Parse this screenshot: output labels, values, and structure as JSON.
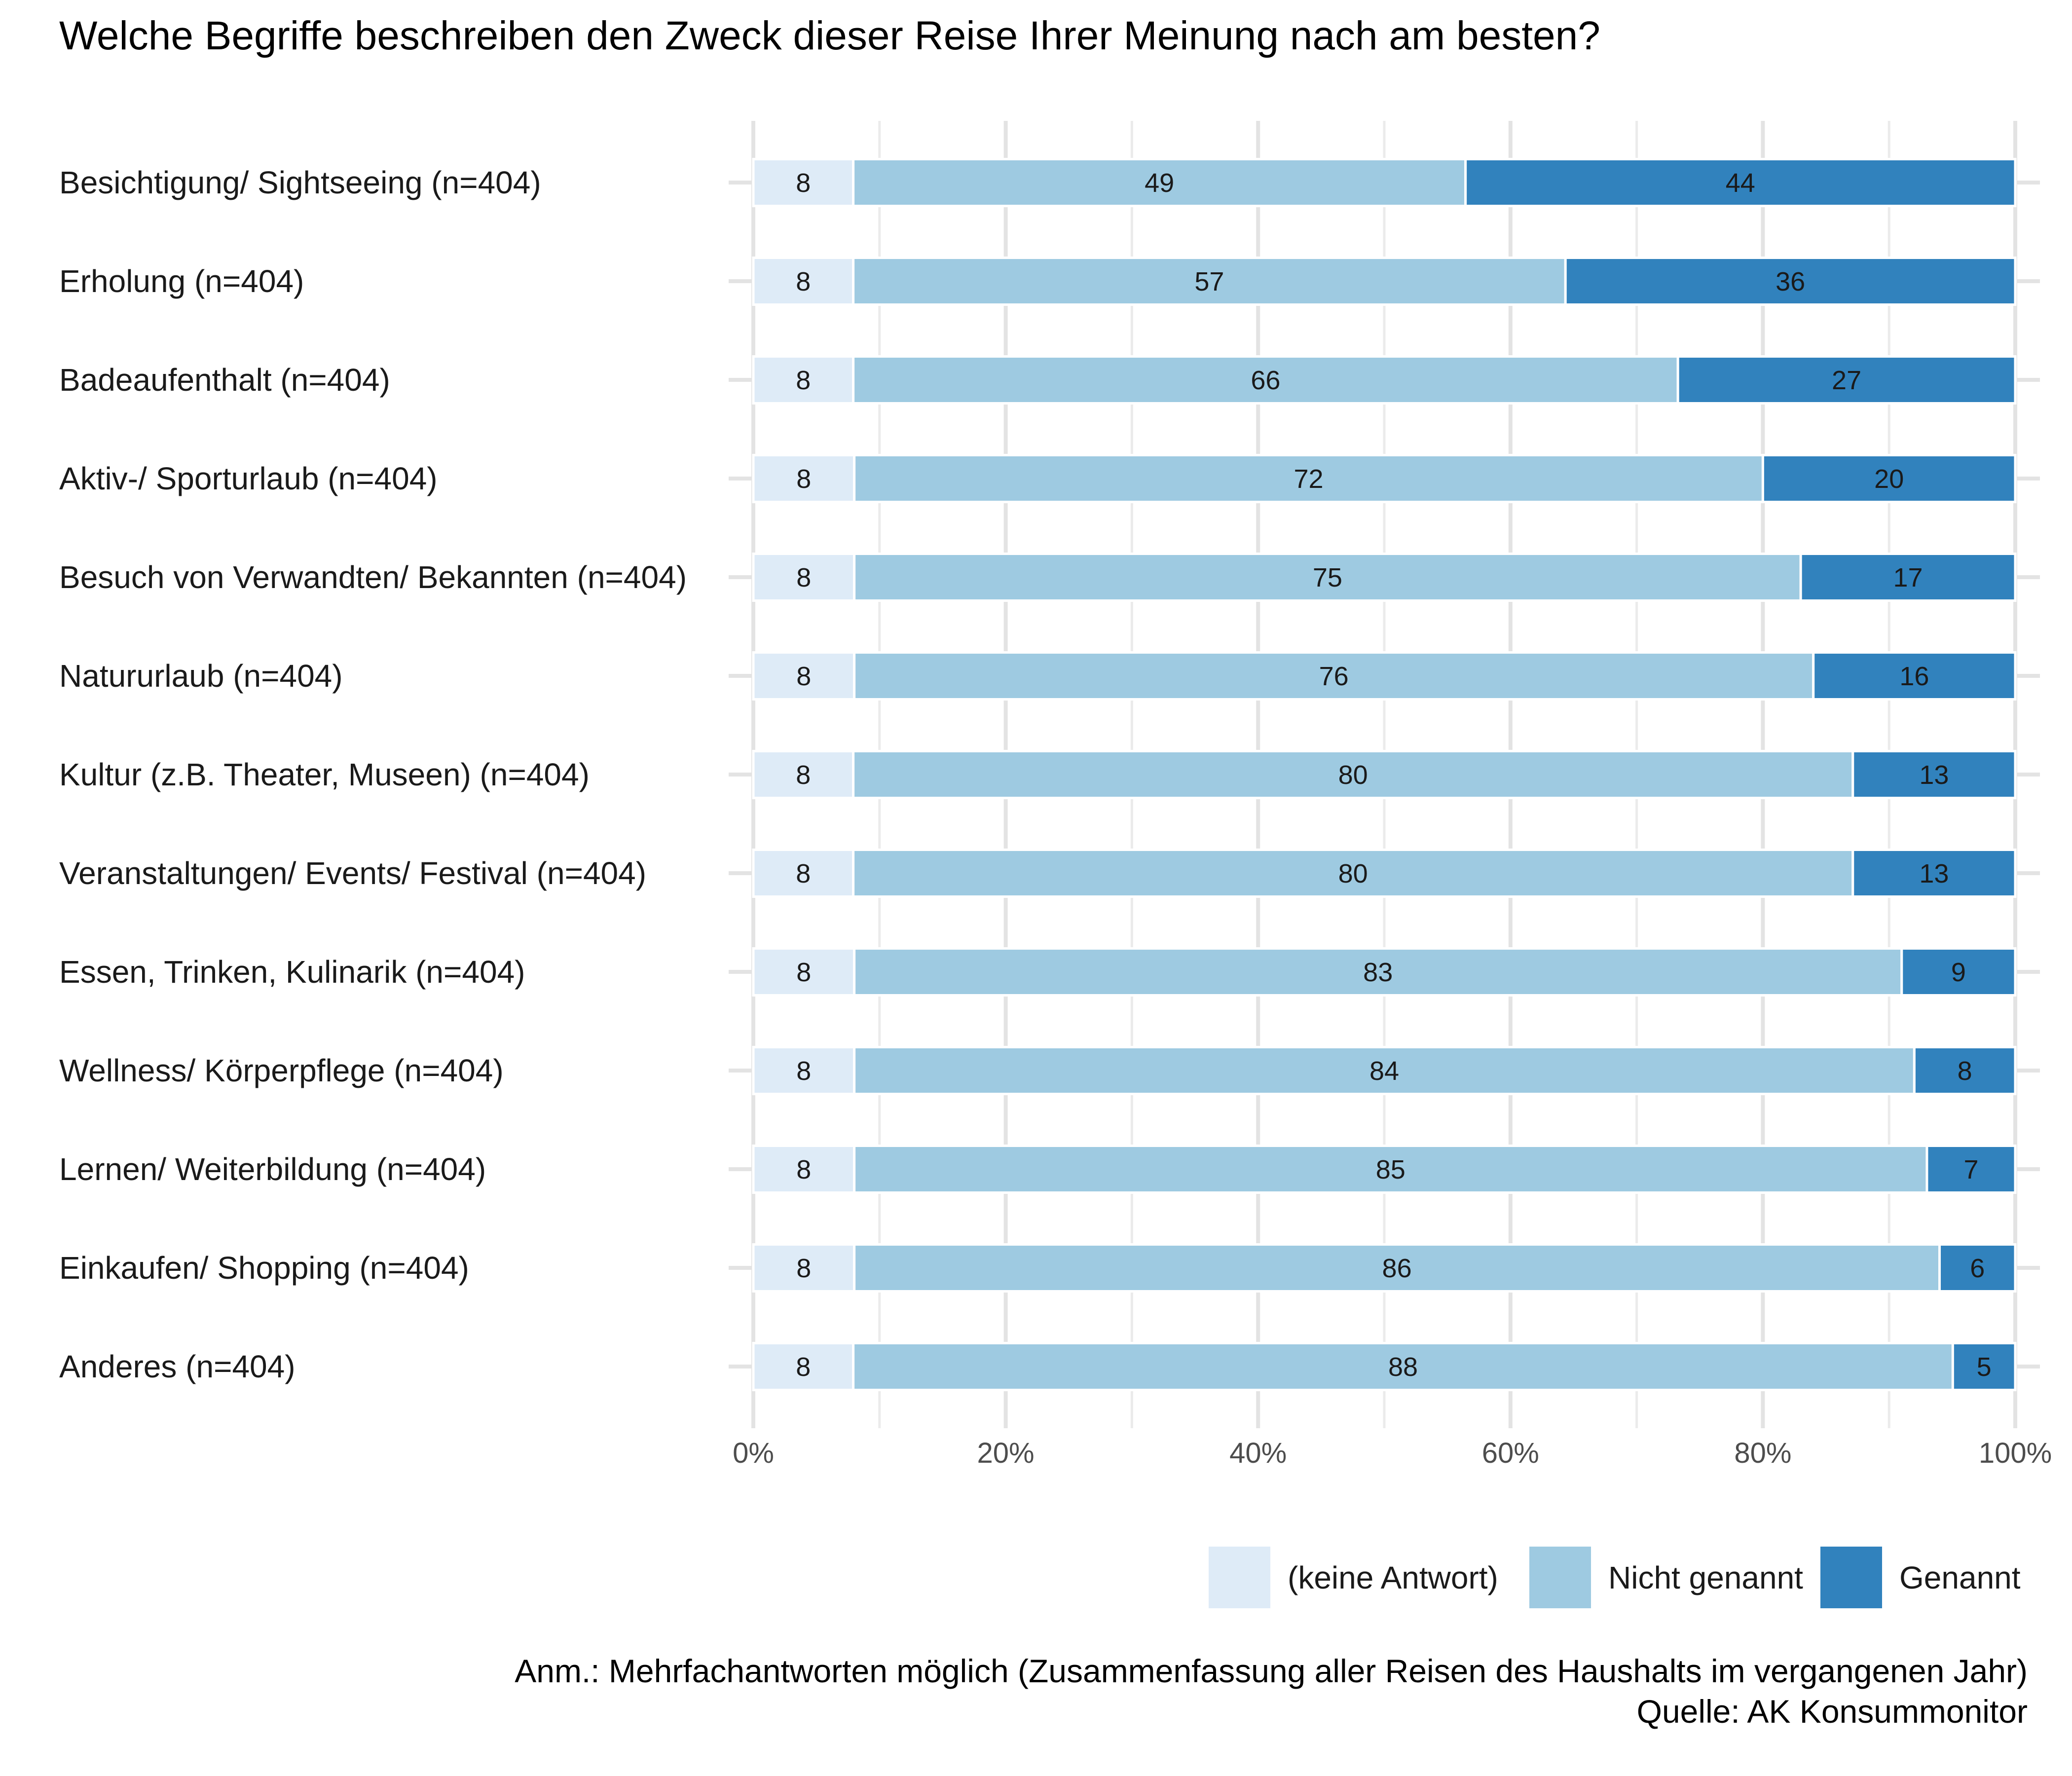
{
  "chart_data": {
    "type": "bar",
    "orientation": "horizontal",
    "stacked": true,
    "title": "Welche Begriffe beschreiben den Zweck dieser Reise Ihrer Meinung nach am besten?",
    "xlabel": "",
    "ylabel": "",
    "xlim": [
      0,
      100
    ],
    "x_ticks": [
      "0%",
      "20%",
      "40%",
      "60%",
      "80%",
      "100%"
    ],
    "x_tick_values": [
      0,
      20,
      40,
      60,
      80,
      100
    ],
    "grid": true,
    "legend_position": "bottom-right",
    "categories": [
      "Besichtigung/ Sightseeing (n=404)",
      "Erholung (n=404)",
      "Badeaufenthalt (n=404)",
      "Aktiv-/ Sporturlaub (n=404)",
      "Besuch von Verwandten/ Bekannten (n=404)",
      "Natururlaub (n=404)",
      "Kultur (z.B. Theater, Museen) (n=404)",
      "Veranstaltungen/ Events/ Festival (n=404)",
      "Essen, Trinken, Kulinarik (n=404)",
      "Wellness/ Körperpflege (n=404)",
      "Lernen/ Weiterbildung (n=404)",
      "Einkaufen/ Shopping (n=404)",
      "Anderes (n=404)"
    ],
    "series": [
      {
        "name": "(keine Antwort)",
        "color": "#deebf7",
        "values": [
          8,
          8,
          8,
          8,
          8,
          8,
          8,
          8,
          8,
          8,
          8,
          8,
          8
        ]
      },
      {
        "name": "Nicht genannt",
        "color": "#9ecae1",
        "values": [
          49,
          57,
          66,
          72,
          75,
          76,
          80,
          80,
          83,
          84,
          85,
          86,
          88
        ]
      },
      {
        "name": "Genannt",
        "color": "#3182bd",
        "values": [
          44,
          36,
          27,
          20,
          17,
          16,
          13,
          13,
          9,
          8,
          7,
          6,
          5
        ]
      }
    ],
    "notes": [
      "Anm.: Mehrfachantworten möglich (Zusammenfassung aller Reisen des Haushalts im vergangenen Jahr)",
      "Quelle: AK Konsummonitor"
    ]
  }
}
